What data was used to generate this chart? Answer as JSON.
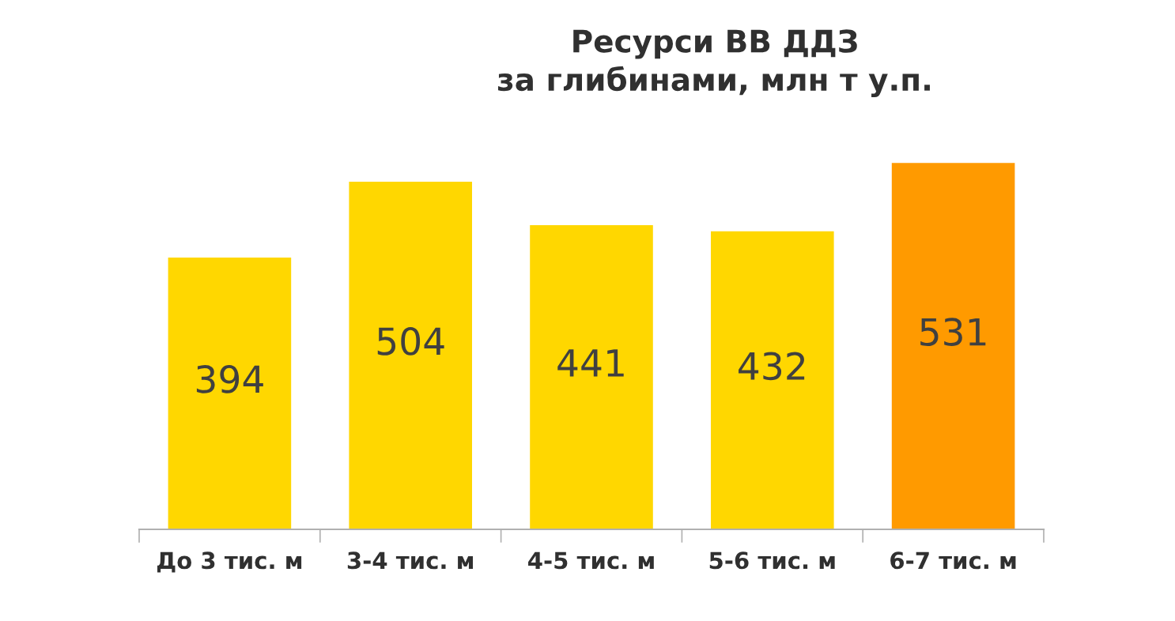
{
  "chart_data": {
    "type": "bar",
    "title": "Ресурси ВВ ДДЗ\nза глибинами, млн т у.п.",
    "categories": [
      "До 3 тис. м",
      "3-4 тис. м",
      "4-5 тис. м",
      "5-6 тис. м",
      "6-7 тис. м"
    ],
    "values": [
      394,
      504,
      441,
      432,
      531
    ],
    "colors": [
      "#ffd700",
      "#ffd700",
      "#ffd700",
      "#ffd700",
      "#ff9a00"
    ],
    "data_labels": true,
    "grid": false,
    "tick_labels": "x"
  }
}
